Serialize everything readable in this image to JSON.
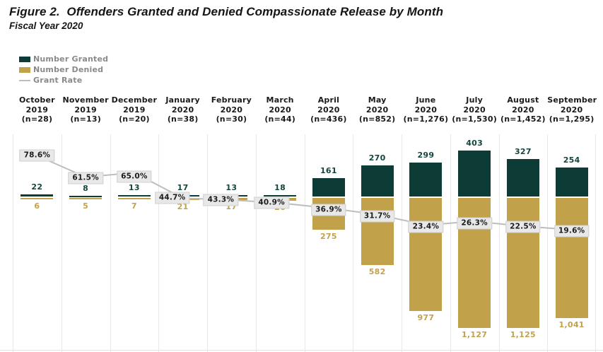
{
  "title": "Figure 2.  Offenders Granted and Denied Compassionate Release by Month",
  "subtitle": "Fiscal Year 2020",
  "legend": {
    "granted_label": "Number Granted",
    "denied_label": "Number Denied",
    "rate_label": "Grant Rate"
  },
  "colors": {
    "granted": "#0d3c37",
    "denied": "#c2a14b",
    "granted_text": "#13463e",
    "denied_text": "#c2a14b",
    "rate_line": "#bdbdbd",
    "rate_box_bg": "#e8e8e8",
    "rate_box_border": "#cfcfcf",
    "gridline": "#e9e9e9",
    "legend_text": "#8a8a8a"
  },
  "chart_data": {
    "type": "bar",
    "title": "Figure 2. Offenders Granted and Denied Compassionate Release by Month",
    "subtitle": "Fiscal Year 2020",
    "legend_position": "top-left",
    "grid": "vertical-column-separators",
    "orientation": "diverging: granted drawn above shared baseline, denied below",
    "categories": [
      {
        "month": "October",
        "year": "2019",
        "n_label": "(n=28)"
      },
      {
        "month": "November",
        "year": "2019",
        "n_label": "(n=13)"
      },
      {
        "month": "December",
        "year": "2019",
        "n_label": "(n=20)"
      },
      {
        "month": "January",
        "year": "2020",
        "n_label": "(n=38)"
      },
      {
        "month": "February",
        "year": "2020",
        "n_label": "(n=30)"
      },
      {
        "month": "March",
        "year": "2020",
        "n_label": "(n=44)"
      },
      {
        "month": "April",
        "year": "2020",
        "n_label": "(n=436)"
      },
      {
        "month": "May",
        "year": "2020",
        "n_label": "(n=852)"
      },
      {
        "month": "June",
        "year": "2020",
        "n_label": "(n=1,276)"
      },
      {
        "month": "July",
        "year": "2020",
        "n_label": "(n=1,530)"
      },
      {
        "month": "August",
        "year": "2020",
        "n_label": "(n=1,452)"
      },
      {
        "month": "September",
        "year": "2020",
        "n_label": "(n=1,295)"
      }
    ],
    "series": [
      {
        "name": "Number Granted",
        "type": "bar",
        "values": [
          22,
          8,
          13,
          17,
          13,
          18,
          161,
          270,
          299,
          403,
          327,
          254
        ]
      },
      {
        "name": "Number Denied",
        "type": "bar",
        "values": [
          6,
          5,
          7,
          21,
          17,
          26,
          275,
          582,
          977,
          1127,
          1125,
          1041
        ]
      },
      {
        "name": "Grant Rate",
        "type": "line",
        "unit": "%",
        "values": [
          78.6,
          61.5,
          65.0,
          44.7,
          43.3,
          40.9,
          36.9,
          31.7,
          23.4,
          26.3,
          22.5,
          19.6
        ]
      }
    ]
  }
}
